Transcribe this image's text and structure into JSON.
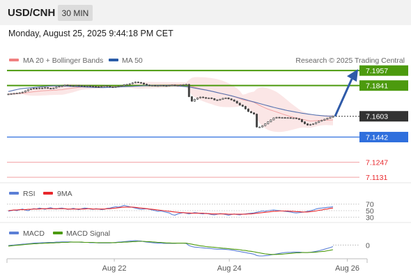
{
  "header": {
    "symbol": "USD/CNH",
    "timeframe": "30 MIN",
    "datetime": "Monday, August 25, 2025 9:44:18 PM CET"
  },
  "legend": {
    "items": [
      {
        "label": "MA 20 + Bollinger Bands",
        "color": "#f08080"
      },
      {
        "label": "MA 50",
        "color": "#2a5ca8"
      }
    ],
    "credit": "Research © 2025 Trading Central"
  },
  "chart_data": [
    {
      "type": "line",
      "panel": "price",
      "title": "USD/CNH",
      "ylim": [
        7.111,
        7.1985
      ],
      "x_range": [
        0,
        116
      ],
      "x_ticks": [
        {
          "label": "Aug 22",
          "x": 35
        },
        {
          "label": "Aug 24",
          "x": 73
        },
        {
          "label": "Aug 26",
          "x": 112
        }
      ],
      "levels": [
        {
          "value": 7.1957,
          "label": "7.1957",
          "kind": "resistance",
          "color": "#4c9a0e"
        },
        {
          "value": 7.1841,
          "label": "7.1841",
          "kind": "resistance",
          "color": "#4c9a0e"
        },
        {
          "value": 7.1603,
          "label": "7.1603",
          "kind": "last",
          "color": "#333333"
        },
        {
          "value": 7.1442,
          "label": "7.1442",
          "kind": "pivot",
          "color": "#2f6fdd"
        },
        {
          "value": 7.1247,
          "label": "7.1247",
          "kind": "support",
          "color": "#e8272c"
        },
        {
          "value": 7.1131,
          "label": "7.1131",
          "kind": "support",
          "color": "#e8272c"
        }
      ],
      "series": [
        {
          "name": "price",
          "values": [
            7.1775,
            7.1778,
            7.178,
            7.1782,
            7.1785,
            7.179,
            7.18,
            7.181,
            7.1815,
            7.182,
            7.1818,
            7.1822,
            7.182,
            7.1825,
            7.182,
            7.1818,
            7.1822,
            7.183,
            7.1835,
            7.1838,
            7.1845,
            7.1842,
            7.184,
            7.1838,
            7.1842,
            7.184,
            7.1838,
            7.1835,
            7.1838,
            7.1836,
            7.1834,
            7.1832,
            7.183,
            7.1835,
            7.1838,
            7.1836,
            7.183,
            7.1828,
            7.1832,
            7.1835,
            7.184,
            7.1848,
            7.185,
            7.1855,
            7.1862,
            7.1868,
            7.1865,
            7.186,
            7.1852,
            7.1845,
            7.184,
            7.1842,
            7.1838,
            7.184,
            7.1842,
            7.184,
            7.1838,
            7.1842,
            7.1845,
            7.184,
            7.1842,
            7.1845,
            7.1848,
            7.185,
            7.1755,
            7.172,
            7.1735,
            7.1745,
            7.1752,
            7.1748,
            7.1742,
            7.1745,
            7.174,
            7.173,
            7.1728,
            7.1735,
            7.1742,
            7.1745,
            7.1738,
            7.173,
            7.172,
            7.1705,
            7.169,
            7.168,
            7.166,
            7.164,
            7.163,
            7.162,
            7.152,
            7.152,
            7.153,
            7.1545,
            7.156,
            7.1575,
            7.159,
            7.1595,
            7.1592,
            7.1593,
            7.159,
            7.1592,
            7.1588,
            7.159,
            7.1585,
            7.1578,
            7.156,
            7.1545,
            7.1535,
            7.154,
            7.1545,
            7.1555,
            7.1565,
            7.1572,
            7.158,
            7.1588,
            7.1595,
            7.1603
          ]
        },
        {
          "name": "MA 50",
          "values": [
            7.1795,
            7.18,
            7.1805,
            7.181,
            7.1815,
            7.1818,
            7.182,
            7.1822,
            7.1824,
            7.1826,
            7.1828,
            7.183,
            7.1832,
            7.1834,
            7.1836,
            7.1837,
            7.1838,
            7.1838,
            7.1838,
            7.1838,
            7.1837,
            7.1836,
            7.1835,
            7.1834,
            7.1833,
            7.1832,
            7.1831,
            7.183,
            7.1829,
            7.1828,
            7.1827,
            7.1826,
            7.1826,
            7.1825,
            7.1825,
            7.1826,
            7.1827,
            7.1828,
            7.1829,
            7.183,
            7.1831,
            7.1832,
            7.1833,
            7.1834,
            7.1835,
            7.1836,
            7.1837,
            7.1838,
            7.1839,
            7.184,
            7.1841,
            7.1842,
            7.1842,
            7.1842,
            7.1842,
            7.1842,
            7.1842,
            7.1842,
            7.1841,
            7.184,
            7.1838,
            7.1836,
            7.1834,
            7.1832,
            7.183,
            7.1826,
            7.1822,
            7.1818,
            7.1814,
            7.181,
            7.1806,
            7.1802,
            7.1797,
            7.1792,
            7.1787,
            7.1782,
            7.1777,
            7.1772,
            7.1767,
            7.1762,
            7.1756,
            7.175,
            7.1744,
            7.1738,
            7.1732,
            7.1726,
            7.172,
            7.1714,
            7.1708,
            7.1702,
            7.1696,
            7.169,
            7.1684,
            7.1678,
            7.1672,
            7.1667,
            7.1662,
            7.1657,
            7.1652,
            7.1647,
            7.1643,
            7.1639,
            7.1635,
            7.1631,
            7.1627,
            7.1624,
            7.1621,
            7.1618,
            7.1615,
            7.1612,
            7.161,
            7.1608,
            7.1606,
            7.1605,
            7.1604,
            7.1603
          ]
        }
      ],
      "projection": {
        "from_value": 7.1603,
        "to_value": 7.1957
      }
    },
    {
      "type": "line",
      "panel": "RSI",
      "ylim": [
        20,
        80
      ],
      "y_ticks": [
        "70",
        "50",
        "30"
      ],
      "series": [
        {
          "name": "RSI",
          "color": "#5b7fd6",
          "values": [
            48,
            50,
            52,
            50,
            53,
            55,
            52,
            50,
            54,
            56,
            55,
            58,
            56,
            54,
            57,
            59,
            56,
            55,
            57,
            58,
            56,
            54,
            55,
            57,
            55,
            53,
            56,
            58,
            57,
            55,
            54,
            56,
            55,
            53,
            54,
            57,
            58,
            60,
            62,
            61,
            63,
            66,
            64,
            62,
            60,
            58,
            56,
            54,
            55,
            56,
            54,
            52,
            50,
            48,
            49,
            47,
            45,
            43,
            38,
            36,
            40,
            42,
            44,
            42,
            40,
            42,
            44,
            43,
            41,
            40,
            42,
            40,
            38,
            37,
            39,
            41,
            40,
            38,
            36,
            38,
            40,
            38,
            37,
            39,
            40,
            41,
            42,
            43,
            45,
            47,
            49,
            48,
            50,
            51,
            52,
            51,
            50,
            49,
            48,
            47,
            46,
            44,
            43,
            44,
            45,
            46,
            48,
            50,
            52,
            55,
            57,
            58,
            59,
            60,
            61,
            62
          ]
        },
        {
          "name": "9MA",
          "color": "#e8272c",
          "values": [
            50,
            51,
            52,
            52,
            53,
            53,
            53,
            54,
            54,
            55,
            55,
            55,
            56,
            56,
            56,
            56,
            56,
            56,
            56,
            56,
            56,
            55,
            55,
            55,
            55,
            55,
            55,
            55,
            56,
            56,
            55,
            55,
            55,
            55,
            55,
            56,
            56,
            57,
            58,
            59,
            60,
            61,
            61,
            61,
            61,
            60,
            59,
            58,
            57,
            56,
            55,
            54,
            53,
            52,
            51,
            50,
            49,
            48,
            47,
            46,
            45,
            44,
            44,
            43,
            43,
            42,
            42,
            42,
            42,
            42,
            41,
            41,
            40,
            40,
            40,
            40,
            40,
            40,
            39,
            39,
            39,
            39,
            39,
            39,
            39,
            40,
            40,
            41,
            42,
            43,
            44,
            45,
            46,
            47,
            48,
            48,
            49,
            49,
            49,
            49,
            48,
            48,
            47,
            47,
            46,
            46,
            46,
            47,
            48,
            49,
            51,
            52,
            54,
            55,
            57,
            58
          ]
        }
      ]
    },
    {
      "type": "line",
      "panel": "MACD",
      "ylim": [
        -0.005,
        0.003
      ],
      "y_ticks": [
        "0"
      ],
      "series": [
        {
          "name": "MACD",
          "color": "#5b7fd6",
          "values": [
            -0.0002,
            -0.0001,
            0.0,
            0.0001,
            0.0002,
            0.0003,
            0.0004,
            0.0005,
            0.0006,
            0.0007,
            0.0008,
            0.0008,
            0.0009,
            0.0009,
            0.001,
            0.001,
            0.001,
            0.0011,
            0.0011,
            0.0012,
            0.0012,
            0.0012,
            0.0012,
            0.0011,
            0.0011,
            0.0011,
            0.001,
            0.001,
            0.001,
            0.0009,
            0.0009,
            0.0009,
            0.0008,
            0.0008,
            0.0008,
            0.0008,
            0.0008,
            0.0009,
            0.001,
            0.0011,
            0.0012,
            0.0013,
            0.0014,
            0.0015,
            0.0016,
            0.0017,
            0.0016,
            0.0015,
            0.0013,
            0.0011,
            0.001,
            0.0009,
            0.0008,
            0.0007,
            0.0007,
            0.0006,
            0.0006,
            0.0006,
            0.0006,
            0.0006,
            0.0007,
            0.0007,
            0.0007,
            0.0006,
            -0.0002,
            -0.0006,
            -0.0008,
            -0.0009,
            -0.001,
            -0.0011,
            -0.0012,
            -0.0013,
            -0.0014,
            -0.0015,
            -0.0016,
            -0.0016,
            -0.0016,
            -0.0017,
            -0.0018,
            -0.0019,
            -0.0021,
            -0.0023,
            -0.0025,
            -0.0027,
            -0.0029,
            -0.0031,
            -0.0033,
            -0.0035,
            -0.004,
            -0.0042,
            -0.0042,
            -0.0041,
            -0.004,
            -0.0038,
            -0.0036,
            -0.0034,
            -0.0032,
            -0.003,
            -0.0029,
            -0.0028,
            -0.0028,
            -0.0027,
            -0.0027,
            -0.0027,
            -0.0028,
            -0.0029,
            -0.0029,
            -0.0028,
            -0.0026,
            -0.0024,
            -0.0022,
            -0.0019,
            -0.0016,
            -0.0013,
            -0.001,
            -0.0006
          ]
        },
        {
          "name": "MACD Signal",
          "color": "#4c9a0e",
          "values": [
            -0.0004,
            -0.0003,
            -0.0002,
            -0.0001,
            0.0,
            0.0001,
            0.0002,
            0.0003,
            0.0004,
            0.0005,
            0.0005,
            0.0006,
            0.0006,
            0.0007,
            0.0007,
            0.0008,
            0.0008,
            0.0009,
            0.0009,
            0.001,
            0.001,
            0.001,
            0.0011,
            0.0011,
            0.0011,
            0.0011,
            0.0011,
            0.001,
            0.001,
            0.001,
            0.001,
            0.0009,
            0.0009,
            0.0009,
            0.0009,
            0.0009,
            0.0009,
            0.0009,
            0.0009,
            0.001,
            0.001,
            0.0011,
            0.0011,
            0.0012,
            0.0013,
            0.0013,
            0.0014,
            0.0014,
            0.0014,
            0.0013,
            0.0013,
            0.0012,
            0.0011,
            0.001,
            0.001,
            0.0009,
            0.0008,
            0.0008,
            0.0007,
            0.0007,
            0.0007,
            0.0007,
            0.0007,
            0.0007,
            0.0005,
            0.0003,
            0.0001,
            -0.0001,
            -0.0003,
            -0.0004,
            -0.0006,
            -0.0007,
            -0.0008,
            -0.0009,
            -0.001,
            -0.0011,
            -0.0012,
            -0.0013,
            -0.0014,
            -0.0015,
            -0.0016,
            -0.0017,
            -0.0018,
            -0.002,
            -0.0021,
            -0.0023,
            -0.0024,
            -0.0026,
            -0.0028,
            -0.003,
            -0.0032,
            -0.0034,
            -0.0035,
            -0.0036,
            -0.0036,
            -0.0036,
            -0.0035,
            -0.0035,
            -0.0034,
            -0.0033,
            -0.0032,
            -0.0031,
            -0.003,
            -0.003,
            -0.0029,
            -0.0029,
            -0.0029,
            -0.0028,
            -0.0028,
            -0.0027,
            -0.0026,
            -0.0025,
            -0.0024,
            -0.0022,
            -0.002,
            -0.0018
          ]
        }
      ]
    }
  ],
  "rsi_legend": [
    {
      "label": "RSI",
      "color": "#5b7fd6"
    },
    {
      "label": "9MA",
      "color": "#e8272c"
    }
  ],
  "macd_legend": [
    {
      "label": "MACD",
      "color": "#5b7fd6"
    },
    {
      "label": "MACD Signal",
      "color": "#4c9a0e"
    }
  ]
}
